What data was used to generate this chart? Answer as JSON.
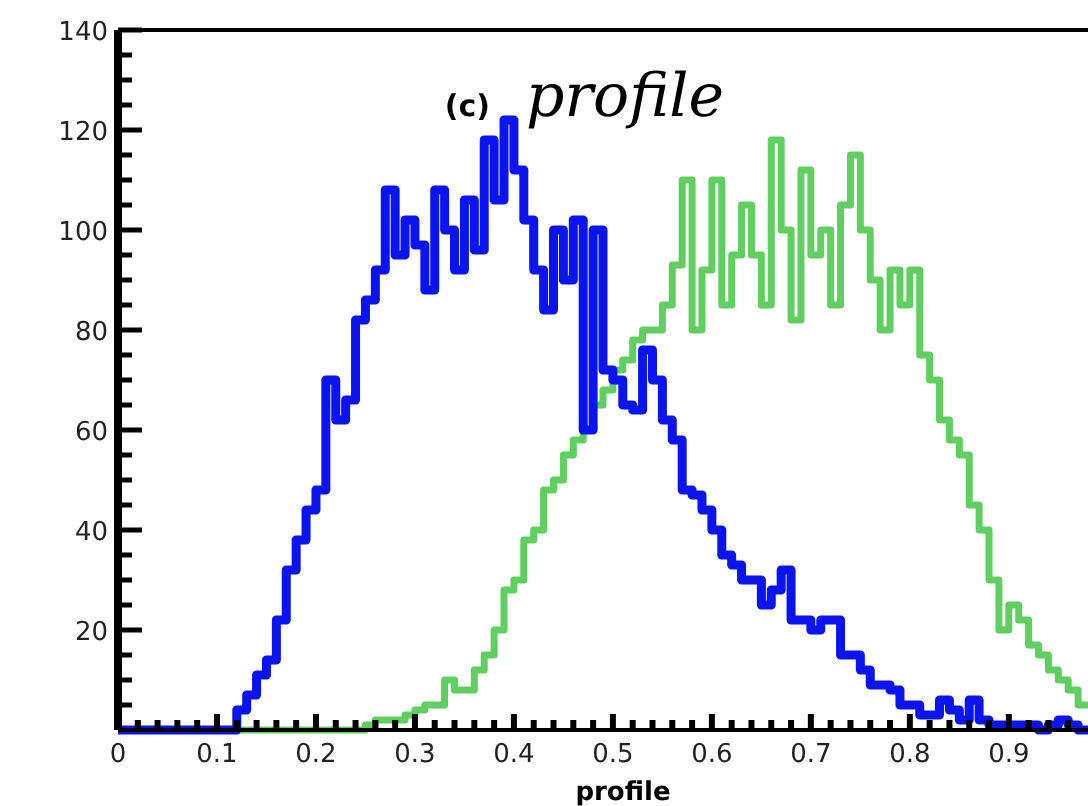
{
  "chart_data": {
    "type": "histogram",
    "title": "(c)",
    "subtitle": "profile",
    "xlabel": "profile",
    "bins": [
      0,
      0.01,
      0.02,
      0.03,
      0.04,
      0.05,
      0.06,
      0.07,
      0.08,
      0.09,
      0.1,
      0.11,
      0.12,
      0.13,
      0.14,
      0.15,
      0.16,
      0.17,
      0.18,
      0.19,
      0.2,
      0.21,
      0.22,
      0.23,
      0.24,
      0.25,
      0.26,
      0.27,
      0.28,
      0.29,
      0.3,
      0.31,
      0.32,
      0.33,
      0.34,
      0.35,
      0.36,
      0.37,
      0.38,
      0.39,
      0.4,
      0.41,
      0.42,
      0.43,
      0.44,
      0.45,
      0.46,
      0.47,
      0.48,
      0.49,
      0.5,
      0.51,
      0.52,
      0.53,
      0.54,
      0.55,
      0.56,
      0.57,
      0.58,
      0.59,
      0.6,
      0.61,
      0.62,
      0.63,
      0.64,
      0.65,
      0.66,
      0.67,
      0.68,
      0.69,
      0.7,
      0.71,
      0.72,
      0.73,
      0.74,
      0.75,
      0.76,
      0.77,
      0.78,
      0.79,
      0.8,
      0.81,
      0.82,
      0.83,
      0.84,
      0.85,
      0.86,
      0.87,
      0.88,
      0.89,
      0.9,
      0.91,
      0.92,
      0.93,
      0.94,
      0.95,
      0.96,
      0.97,
      0.98
    ],
    "series": [
      {
        "color": "#0a14f0",
        "values": [
          0,
          0,
          0,
          0,
          0,
          0,
          0,
          0,
          0,
          0,
          0,
          0,
          4,
          7,
          11,
          14,
          22,
          32,
          38,
          44,
          48,
          70,
          62,
          66,
          82,
          86,
          92,
          108,
          95,
          102,
          97,
          88,
          108,
          100,
          92,
          106,
          96,
          118,
          106,
          122,
          112,
          102,
          92,
          84,
          100,
          90,
          102,
          60,
          100,
          72,
          70,
          65,
          64,
          76,
          70,
          62,
          58,
          48,
          47,
          44,
          40,
          35,
          33,
          30,
          30,
          25,
          28,
          32,
          22,
          22,
          20,
          22,
          22,
          15,
          15,
          12,
          9,
          9,
          8,
          5,
          5,
          3,
          3,
          6,
          4,
          2,
          6,
          2,
          1,
          1,
          1,
          1,
          1,
          0,
          1,
          2,
          1,
          0
        ]
      },
      {
        "color": "#5fd060",
        "values": [
          0,
          0,
          0,
          0,
          0,
          0,
          0,
          0,
          0,
          0,
          0,
          0,
          0,
          0,
          0,
          0,
          0,
          0,
          0,
          0,
          0,
          0,
          0,
          0,
          0,
          1,
          2,
          2,
          2,
          3,
          4,
          5,
          5,
          10,
          8,
          8,
          12,
          15,
          20,
          28,
          30,
          38,
          40,
          48,
          50,
          55,
          58,
          60,
          65,
          68,
          72,
          74,
          78,
          80,
          80,
          85,
          93,
          110,
          80,
          92,
          110,
          85,
          95,
          105,
          95,
          85,
          118,
          100,
          82,
          112,
          95,
          100,
          85,
          105,
          115,
          100,
          90,
          80,
          92,
          85,
          92,
          75,
          70,
          62,
          58,
          55,
          45,
          40,
          30,
          20,
          25,
          22,
          17,
          15,
          12,
          10,
          8,
          5
        ]
      }
    ],
    "xlim": [
      0,
      0.98
    ],
    "xticks": [
      0,
      {
        "value": 0.02,
        "label": null
      },
      {
        "value": 0.04,
        "label": null
      },
      {
        "value": 0.06,
        "label": null
      },
      {
        "value": 0.08,
        "label": null
      },
      0.1,
      {
        "value": 0.12,
        "label": null
      },
      {
        "value": 0.14,
        "label": null
      },
      {
        "value": 0.16,
        "label": null
      },
      {
        "value": 0.18,
        "label": null
      },
      0.2,
      {
        "value": 0.22,
        "label": null
      },
      {
        "value": 0.24,
        "label": null
      },
      {
        "value": 0.26,
        "label": null
      },
      {
        "value": 0.28,
        "label": null
      },
      0.3,
      {
        "value": 0.32,
        "label": null
      },
      {
        "value": 0.34,
        "label": null
      },
      {
        "value": 0.36,
        "label": null
      },
      {
        "value": 0.38,
        "label": null
      },
      0.4,
      {
        "value": 0.42,
        "label": null
      },
      {
        "value": 0.44,
        "label": null
      },
      {
        "value": 0.46,
        "label": null
      },
      {
        "value": 0.48,
        "label": null
      },
      0.5,
      {
        "value": 0.52,
        "label": null
      },
      {
        "value": 0.54,
        "label": null
      },
      {
        "value": 0.56,
        "label": null
      },
      {
        "value": 0.58,
        "label": null
      },
      0.6,
      {
        "value": 0.62,
        "label": null
      },
      {
        "value": 0.64,
        "label": null
      },
      {
        "value": 0.66,
        "label": null
      },
      {
        "value": 0.68,
        "label": null
      },
      0.7,
      {
        "value": 0.72,
        "label": null
      },
      {
        "value": 0.74,
        "label": null
      },
      {
        "value": 0.76,
        "label": null
      },
      {
        "value": 0.78,
        "label": null
      },
      0.8,
      {
        "value": 0.82,
        "label": null
      },
      {
        "value": 0.84,
        "label": null
      },
      {
        "value": 0.86,
        "label": null
      },
      {
        "value": 0.88,
        "label": null
      },
      0.9,
      {
        "value": 0.92,
        "label": null
      },
      {
        "value": 0.94,
        "label": null
      },
      {
        "value": 0.96,
        "label": null
      }
    ],
    "ylim": [
      0,
      140
    ],
    "yticks": [
      {
        "value": 5,
        "label": null
      },
      {
        "value": 10,
        "label": null
      },
      {
        "value": 15,
        "label": null
      },
      20,
      {
        "value": 25,
        "label": null
      },
      {
        "value": 30,
        "label": null
      },
      {
        "value": 35,
        "label": null
      },
      40,
      {
        "value": 45,
        "label": null
      },
      {
        "value": 50,
        "label": null
      },
      {
        "value": 55,
        "label": null
      },
      60,
      {
        "value": 65,
        "label": null
      },
      {
        "value": 70,
        "label": null
      },
      {
        "value": 75,
        "label": null
      },
      80,
      {
        "value": 85,
        "label": null
      },
      {
        "value": 90,
        "label": null
      },
      {
        "value": 95,
        "label": null
      },
      100,
      {
        "value": 105,
        "label": null
      },
      {
        "value": 110,
        "label": null
      },
      {
        "value": 115,
        "label": null
      },
      120,
      {
        "value": 125,
        "label": null
      },
      {
        "value": 130,
        "label": null
      },
      {
        "value": 135,
        "label": null
      },
      140
    ]
  }
}
